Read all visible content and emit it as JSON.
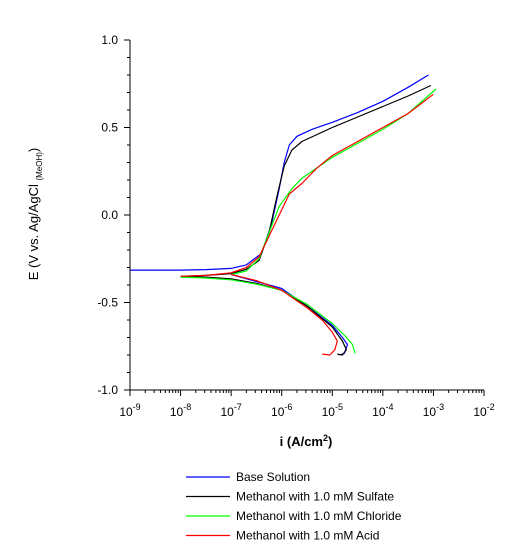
{
  "chart_data": {
    "type": "line",
    "title": "",
    "xlabel": {
      "base": "i (A/cm",
      "sup": "2",
      "end": ")"
    },
    "ylabel": {
      "main": "E  (V  vs. Ag/AgCl ",
      "sub": "(MeOH)",
      "end": ")"
    },
    "x_scale": "log",
    "xlim": [
      -9,
      -2
    ],
    "x_ticks": [
      {
        "base": "10",
        "exp": "-9",
        "value": -9
      },
      {
        "base": "10",
        "exp": "-8",
        "value": -8
      },
      {
        "base": "10",
        "exp": "-7",
        "value": -7
      },
      {
        "base": "10",
        "exp": "-6",
        "value": -6
      },
      {
        "base": "10",
        "exp": "-5",
        "value": -5
      },
      {
        "base": "10",
        "exp": "-4",
        "value": -4
      },
      {
        "base": "10",
        "exp": "-3",
        "value": -3
      },
      {
        "base": "10",
        "exp": "-2",
        "value": -2
      }
    ],
    "ylim": [
      -1.0,
      1.0
    ],
    "y_ticks": [
      {
        "label": "1.0",
        "value": 1.0
      },
      {
        "label": "0.5",
        "value": 0.5
      },
      {
        "label": "0.0",
        "value": 0.0
      },
      {
        "label": "-0.5",
        "value": -0.5
      },
      {
        "label": "-1.0",
        "value": -1.0
      }
    ],
    "grid": false,
    "legend_position": "bottom",
    "series": [
      {
        "name": "Base Solution",
        "color": "#0000ff",
        "points": [
          [
            -9.0,
            -0.315
          ],
          [
            -8.0,
            -0.315
          ],
          [
            -7.5,
            -0.312
          ],
          [
            -7.0,
            -0.305
          ],
          [
            -6.7,
            -0.285
          ],
          [
            -6.4,
            -0.22
          ],
          [
            -6.2,
            -0.05
          ],
          [
            -6.05,
            0.15
          ],
          [
            -5.95,
            0.3
          ],
          [
            -5.85,
            0.4
          ],
          [
            -5.7,
            0.45
          ],
          [
            -5.4,
            0.49
          ],
          [
            -5.0,
            0.53
          ],
          [
            -4.5,
            0.585
          ],
          [
            -4.0,
            0.65
          ],
          [
            -3.5,
            0.73
          ],
          [
            -3.1,
            0.8
          ],
          null,
          [
            -7.0,
            -0.34
          ],
          [
            -6.5,
            -0.38
          ],
          [
            -6.0,
            -0.42
          ],
          [
            -5.5,
            -0.52
          ],
          [
            -5.0,
            -0.63
          ],
          [
            -4.8,
            -0.7
          ],
          [
            -4.7,
            -0.74
          ],
          [
            -4.76,
            -0.79
          ],
          [
            -4.85,
            -0.8
          ]
        ]
      },
      {
        "name": "Methanol with 1.0 mM Sulfate",
        "color": "#000000",
        "points": [
          [
            -8.0,
            -0.35
          ],
          [
            -7.5,
            -0.345
          ],
          [
            -7.0,
            -0.335
          ],
          [
            -6.7,
            -0.31
          ],
          [
            -6.45,
            -0.26
          ],
          [
            -6.25,
            -0.1
          ],
          [
            -6.1,
            0.1
          ],
          [
            -5.95,
            0.28
          ],
          [
            -5.8,
            0.37
          ],
          [
            -5.6,
            0.42
          ],
          [
            -5.3,
            0.46
          ],
          [
            -5.0,
            0.5
          ],
          [
            -4.5,
            0.56
          ],
          [
            -4.0,
            0.62
          ],
          [
            -3.5,
            0.68
          ],
          [
            -3.05,
            0.74
          ],
          null,
          [
            -8.0,
            -0.35
          ],
          [
            -7.5,
            -0.355
          ],
          [
            -7.0,
            -0.365
          ],
          [
            -6.5,
            -0.39
          ],
          [
            -6.0,
            -0.43
          ],
          [
            -5.5,
            -0.52
          ],
          [
            -5.0,
            -0.64
          ],
          [
            -4.8,
            -0.72
          ],
          [
            -4.72,
            -0.77
          ],
          [
            -4.8,
            -0.8
          ],
          [
            -4.9,
            -0.795
          ]
        ]
      },
      {
        "name": "Methanol with 1.0 mM Chloride",
        "color": "#00ff00",
        "points": [
          [
            -7.0,
            -0.34
          ],
          [
            -6.7,
            -0.32
          ],
          [
            -6.45,
            -0.25
          ],
          [
            -6.25,
            -0.1
          ],
          [
            -6.05,
            0.05
          ],
          [
            -5.8,
            0.15
          ],
          [
            -5.6,
            0.21
          ],
          [
            -5.3,
            0.27
          ],
          [
            -5.0,
            0.33
          ],
          [
            -4.5,
            0.41
          ],
          [
            -4.0,
            0.49
          ],
          [
            -3.5,
            0.58
          ],
          [
            -2.95,
            0.72
          ],
          null,
          [
            -8.0,
            -0.355
          ],
          [
            -7.5,
            -0.36
          ],
          [
            -7.0,
            -0.37
          ],
          [
            -6.5,
            -0.395
          ],
          [
            -6.0,
            -0.43
          ],
          [
            -5.5,
            -0.51
          ],
          [
            -5.0,
            -0.62
          ],
          [
            -4.75,
            -0.69
          ],
          [
            -4.6,
            -0.74
          ],
          [
            -4.55,
            -0.79
          ]
        ]
      },
      {
        "name": "Methanol with 1.0 mM Acid",
        "color": "#ff0000",
        "points": [
          [
            -8.0,
            -0.35
          ],
          [
            -7.5,
            -0.345
          ],
          [
            -7.0,
            -0.33
          ],
          [
            -6.7,
            -0.3
          ],
          [
            -6.45,
            -0.24
          ],
          [
            -6.25,
            -0.12
          ],
          [
            -6.05,
            0.0
          ],
          [
            -5.85,
            0.12
          ],
          [
            -5.6,
            0.18
          ],
          [
            -5.3,
            0.27
          ],
          [
            -5.0,
            0.34
          ],
          [
            -4.5,
            0.42
          ],
          [
            -4.0,
            0.5
          ],
          [
            -3.5,
            0.58
          ],
          [
            -3.0,
            0.69
          ],
          null,
          [
            -7.0,
            -0.34
          ],
          [
            -6.5,
            -0.375
          ],
          [
            -6.0,
            -0.43
          ],
          [
            -5.5,
            -0.53
          ],
          [
            -5.2,
            -0.6
          ],
          [
            -5.0,
            -0.67
          ],
          [
            -4.9,
            -0.72
          ],
          [
            -4.95,
            -0.77
          ],
          [
            -5.05,
            -0.8
          ],
          [
            -5.2,
            -0.795
          ]
        ]
      }
    ]
  }
}
